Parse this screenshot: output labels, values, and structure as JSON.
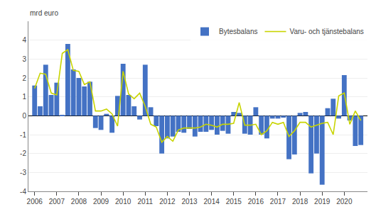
{
  "chart_data": {
    "type": "bar",
    "y_label": "mrd euro",
    "x": [
      2006.0,
      2006.25,
      2006.5,
      2006.75,
      2007.0,
      2007.25,
      2007.5,
      2007.75,
      2008.0,
      2008.25,
      2008.5,
      2008.75,
      2009.0,
      2009.25,
      2009.5,
      2009.75,
      2010.0,
      2010.25,
      2010.5,
      2010.75,
      2011.0,
      2011.25,
      2011.5,
      2011.75,
      2012.0,
      2012.25,
      2012.5,
      2012.75,
      2013.0,
      2013.25,
      2013.5,
      2013.75,
      2014.0,
      2014.25,
      2014.5,
      2014.75,
      2015.0,
      2015.25,
      2015.5,
      2015.75,
      2016.0,
      2016.25,
      2016.5,
      2016.75,
      2017.0,
      2017.25,
      2017.5,
      2017.75,
      2018.0,
      2018.25,
      2018.5,
      2018.75,
      2019.0,
      2019.25,
      2019.5,
      2019.75,
      2020.0,
      2020.25,
      2020.5,
      2020.75
    ],
    "series": [
      {
        "name": "Bytesbalans",
        "type": "bar",
        "color": "#4472c4",
        "values": [
          1.6,
          0.5,
          2.7,
          1.1,
          1.75,
          0.05,
          3.8,
          2.45,
          2.0,
          1.55,
          1.8,
          -0.65,
          -0.75,
          0.1,
          -0.9,
          1.05,
          2.75,
          1.1,
          0.5,
          -0.2,
          2.7,
          0.45,
          -0.55,
          -2.0,
          -1.2,
          -1.1,
          -0.85,
          -0.9,
          -0.7,
          -1.1,
          -0.85,
          -0.85,
          -0.75,
          -1.0,
          -0.8,
          -0.95,
          0.2,
          0.15,
          -0.95,
          -1.0,
          0.45,
          -1.0,
          -1.2,
          -0.15,
          -0.15,
          -0.1,
          -2.3,
          -2.05,
          0.15,
          0.2,
          -3.05,
          -2.0,
          -3.65,
          0.4,
          0.9,
          -0.15,
          2.15,
          -0.25,
          -1.6,
          -1.55
        ]
      },
      {
        "name": "Varu- och tjänstebalans",
        "type": "line",
        "color": "#c8d400",
        "values": [
          1.45,
          2.25,
          2.2,
          1.2,
          1.1,
          3.3,
          3.5,
          2.4,
          2.35,
          1.65,
          1.8,
          0.25,
          0.25,
          0.35,
          0.1,
          -0.55,
          2.35,
          1.15,
          0.9,
          1.2,
          0.5,
          -0.45,
          -0.6,
          -1.4,
          -1.1,
          -1.35,
          -0.75,
          -0.65,
          -0.65,
          -0.65,
          -0.6,
          -0.45,
          -0.5,
          -0.6,
          -0.45,
          -0.45,
          -0.4,
          0.7,
          -0.5,
          -0.5,
          -0.45,
          -1.0,
          -0.8,
          -0.35,
          -0.45,
          -0.35,
          -1.1,
          -0.8,
          -0.35,
          -0.35,
          -0.6,
          -0.5,
          -0.4,
          -0.35,
          -1.0,
          1.05,
          1.2,
          -0.45,
          0.25,
          -0.25
        ]
      }
    ],
    "xlim": [
      2005.72,
      2021.05
    ],
    "xticks": [
      2006,
      2007,
      2008,
      2009,
      2010,
      2011,
      2012,
      2013,
      2014,
      2015,
      2016,
      2017,
      2018,
      2019,
      2020
    ],
    "ylim": [
      -4,
      5
    ],
    "yticks": [
      -4,
      -3,
      -2,
      -1,
      0,
      1,
      2,
      3,
      4
    ],
    "grid": true,
    "legend": "upper right"
  }
}
